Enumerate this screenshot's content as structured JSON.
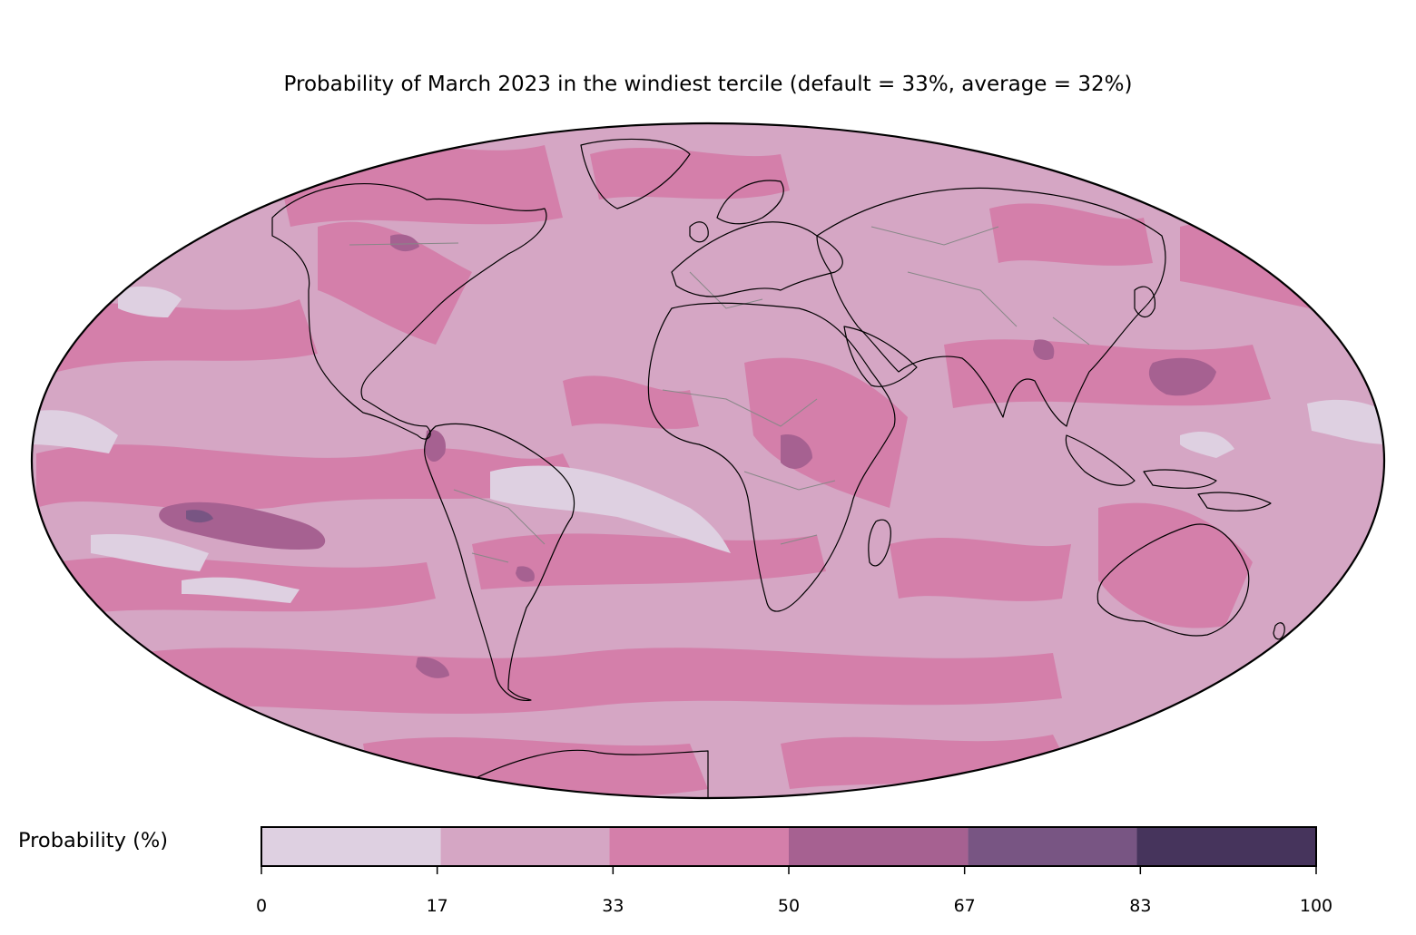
{
  "title": "Probability of March 2023 in the windiest tercile (default = 33%, average = 32%)",
  "colorbar": {
    "label": "Probability (%)",
    "ticks": [
      "0",
      "17",
      "33",
      "50",
      "67",
      "83",
      "100"
    ],
    "bins": [
      {
        "range": [
          0,
          17
        ],
        "color": "#ded0e1"
      },
      {
        "range": [
          17,
          33
        ],
        "color": "#d5a6c4"
      },
      {
        "range": [
          33,
          50
        ],
        "color": "#d47faa"
      },
      {
        "range": [
          50,
          67
        ],
        "color": "#a66191"
      },
      {
        "range": [
          67,
          83
        ],
        "color": "#785583"
      },
      {
        "range": [
          83,
          100
        ],
        "color": "#46345c"
      }
    ]
  },
  "map": {
    "projection": "mollweide",
    "background_color": "#d5a6c4",
    "coastline_color": "#000000",
    "border_color": "#888888"
  }
}
